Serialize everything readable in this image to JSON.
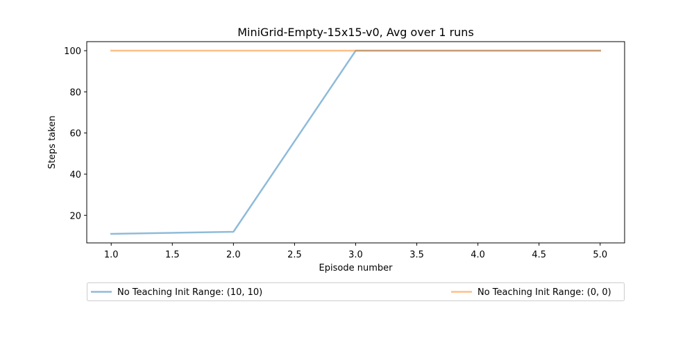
{
  "chart_data": {
    "type": "line",
    "title": "MiniGrid-Empty-15x15-v0, Avg over 1 runs",
    "xlabel": "Episode number",
    "ylabel": "Steps taken",
    "xlim": [
      0.8,
      5.2
    ],
    "ylim": [
      6.6,
      104.4
    ],
    "xticks": [
      "1.0",
      "1.5",
      "2.0",
      "2.5",
      "3.0",
      "3.5",
      "4.0",
      "4.5",
      "5.0"
    ],
    "yticks": [
      "20",
      "40",
      "60",
      "80",
      "100"
    ],
    "grid": false,
    "legend_position": "bottom",
    "series": [
      {
        "name": "No Teaching Init Range: (10, 10)",
        "color": "#1f77b4",
        "x": [
          1,
          2,
          3,
          4,
          5
        ],
        "y": [
          11,
          12,
          100,
          100,
          100
        ]
      },
      {
        "name": "No Teaching Init Range: (0, 0)",
        "color": "#ff7f0e",
        "x": [
          1,
          2,
          3,
          4,
          5
        ],
        "y": [
          100,
          100,
          100,
          100,
          100
        ]
      }
    ]
  }
}
